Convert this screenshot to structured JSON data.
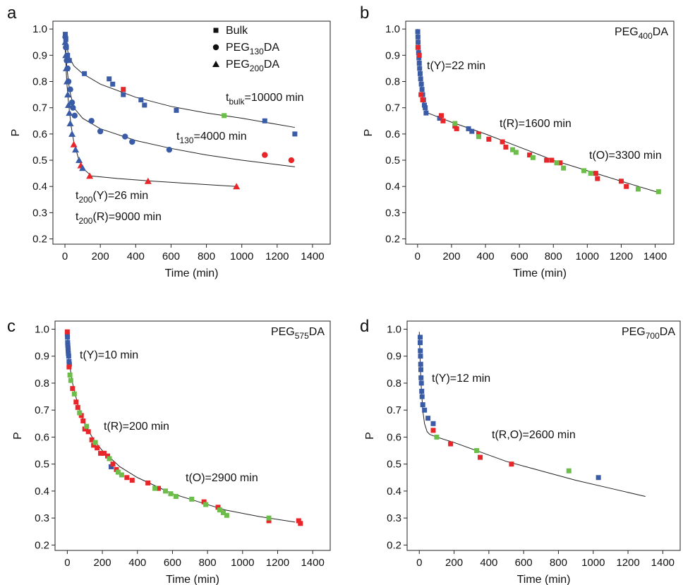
{
  "chart_data": [
    {
      "type": "scatter",
      "panel": "a",
      "xlabel": "Time (min)",
      "ylabel": "P",
      "xlim": [
        -68,
        1500
      ],
      "ylim": [
        0.18,
        1.03
      ],
      "xticks": [
        0,
        200,
        400,
        600,
        800,
        1000,
        1200,
        1400
      ],
      "yticks": [
        0.2,
        0.3,
        0.4,
        0.5,
        0.6,
        0.7,
        0.8,
        0.9,
        {
          "value": 1,
          "label": "1.0"
        }
      ],
      "legend": "top-right",
      "series": [
        {
          "name": [
            {
              "text": "Bulk"
            }
          ],
          "marker": "square",
          "x": [
            2,
            5,
            8,
            15,
            25,
            110,
            250,
            270,
            330,
            330,
            430,
            450,
            630,
            900,
            1130,
            1300
          ],
          "y": [
            0.98,
            0.96,
            0.93,
            0.9,
            0.88,
            0.83,
            0.81,
            0.79,
            0.77,
            0.75,
            0.73,
            0.71,
            0.69,
            0.67,
            0.65,
            0.6
          ],
          "colors": [
            "#3a5ba6",
            "#3a5ba6",
            "#3a5ba6",
            "#3a5ba6",
            "#3a5ba6",
            "#3a5ba6",
            "#3a5ba6",
            "#3a5ba6",
            "#e8262a",
            "#3a5ba6",
            "#3a5ba6",
            "#3a5ba6",
            "#3a5ba6",
            "#6dbd4b",
            "#3a5ba6",
            "#3a5ba6"
          ]
        },
        {
          "name": [
            {
              "text": "PEG"
            },
            {
              "text": "130",
              "sub": true
            },
            {
              "text": "DA"
            }
          ],
          "marker": "circle",
          "x": [
            2,
            5,
            10,
            15,
            20,
            30,
            40,
            45,
            55,
            150,
            200,
            340,
            380,
            590,
            1130,
            1280
          ],
          "y": [
            0.97,
            0.93,
            0.88,
            0.85,
            0.8,
            0.77,
            0.72,
            0.7,
            0.67,
            0.65,
            0.61,
            0.59,
            0.57,
            0.54,
            0.52,
            0.5
          ],
          "colors": [
            "#3a5ba6",
            "#3a5ba6",
            "#3a5ba6",
            "#3a5ba6",
            "#3a5ba6",
            "#3a5ba6",
            "#3a5ba6",
            "#3a5ba6",
            "#3a5ba6",
            "#3a5ba6",
            "#3a5ba6",
            "#3a5ba6",
            "#3a5ba6",
            "#3a5ba6",
            "#e8262a",
            "#e8262a"
          ]
        },
        {
          "name": [
            {
              "text": "PEG"
            },
            {
              "text": "200",
              "sub": true
            },
            {
              "text": "DA"
            }
          ],
          "marker": "triangle",
          "x": [
            2,
            5,
            8,
            12,
            16,
            20,
            25,
            30,
            40,
            50,
            60,
            80,
            90,
            100,
            140,
            470,
            970
          ],
          "y": [
            0.95,
            0.9,
            0.85,
            0.8,
            0.75,
            0.71,
            0.68,
            0.64,
            0.6,
            0.56,
            0.54,
            0.5,
            0.48,
            0.47,
            0.44,
            0.42,
            0.4
          ],
          "colors": [
            "#3a5ba6",
            "#3a5ba6",
            "#3a5ba6",
            "#3a5ba6",
            "#3a5ba6",
            "#3a5ba6",
            "#3a5ba6",
            "#3a5ba6",
            "#3a5ba6",
            "#e8262a",
            "#3a5ba6",
            "#3a5ba6",
            "#e8262a",
            "#3a5ba6",
            "#e8262a",
            "#e8262a",
            "#e8262a"
          ]
        }
      ],
      "fits": [
        {
          "x": [
            0,
            20,
            50,
            100,
            200,
            400,
            600,
            800,
            1000,
            1300
          ],
          "y": [
            0.98,
            0.9,
            0.86,
            0.83,
            0.79,
            0.74,
            0.705,
            0.68,
            0.66,
            0.625
          ]
        },
        {
          "x": [
            0,
            10,
            25,
            50,
            100,
            200,
            400,
            600,
            800,
            1000,
            1300
          ],
          "y": [
            0.97,
            0.86,
            0.77,
            0.7,
            0.66,
            0.62,
            0.575,
            0.545,
            0.52,
            0.5,
            0.475
          ]
        },
        {
          "x": [
            0,
            10,
            20,
            35,
            50,
            75,
            100,
            150,
            300,
            500,
            970
          ],
          "y": [
            0.95,
            0.8,
            0.72,
            0.63,
            0.57,
            0.51,
            0.47,
            0.44,
            0.43,
            0.42,
            0.4
          ]
        }
      ],
      "annotations": [
        [
          {
            "text": "t"
          },
          {
            "text": "bulk",
            "sub": true
          },
          {
            "text": "=10000 min"
          }
        ],
        [
          {
            "text": "t"
          },
          {
            "text": "130",
            "sub": true
          },
          {
            "text": "=4000 min"
          }
        ],
        [
          {
            "text": "t"
          },
          {
            "text": "200",
            "sub": true
          },
          {
            "text": "(Y)=26 min"
          }
        ],
        [
          {
            "text": "t"
          },
          {
            "text": "200",
            "sub": true
          },
          {
            "text": "(R)=9000 min"
          }
        ]
      ]
    },
    {
      "type": "scatter",
      "panel": "b",
      "xlabel": "Time (min)",
      "ylabel": "P",
      "title": [
        {
          "text": "PEG"
        },
        {
          "text": "400",
          "sub": true
        },
        {
          "text": "DA"
        }
      ],
      "xlim": [
        -70,
        1510
      ],
      "ylim": [
        0.18,
        1.03
      ],
      "xticks": [
        0,
        200,
        400,
        600,
        800,
        1000,
        1200,
        1400
      ],
      "yticks": [
        0.2,
        0.3,
        0.4,
        0.5,
        0.6,
        0.7,
        0.8,
        0.9,
        {
          "value": 1,
          "label": "1.0"
        }
      ],
      "series": [
        {
          "marker": "square",
          "x": [
            1,
            2,
            3,
            4,
            6,
            8,
            10,
            12,
            15,
            18,
            22,
            26,
            30,
            35,
            40,
            45,
            50,
            130,
            300,
            320,
            2,
            10,
            20,
            30,
            140,
            150,
            220,
            230,
            360,
            420,
            500,
            520,
            660,
            760,
            790,
            840,
            1050,
            1060,
            1200,
            1230,
            220,
            360,
            560,
            580,
            680,
            820,
            860,
            980,
            1020,
            1300,
            1420
          ],
          "y": [
            0.99,
            0.97,
            0.95,
            0.93,
            0.91,
            0.89,
            0.87,
            0.85,
            0.83,
            0.81,
            0.79,
            0.77,
            0.75,
            0.73,
            0.71,
            0.7,
            0.68,
            0.66,
            0.62,
            0.61,
            0.93,
            0.9,
            0.75,
            0.73,
            0.67,
            0.65,
            0.63,
            0.62,
            0.6,
            0.58,
            0.57,
            0.55,
            0.52,
            0.5,
            0.5,
            0.49,
            0.45,
            0.43,
            0.42,
            0.4,
            0.64,
            0.59,
            0.54,
            0.53,
            0.51,
            0.49,
            0.47,
            0.46,
            0.45,
            0.39,
            0.38
          ],
          "colors": [
            "#3a5ba6",
            "#3a5ba6",
            "#3a5ba6",
            "#3a5ba6",
            "#3a5ba6",
            "#3a5ba6",
            "#3a5ba6",
            "#3a5ba6",
            "#3a5ba6",
            "#3a5ba6",
            "#3a5ba6",
            "#3a5ba6",
            "#3a5ba6",
            "#3a5ba6",
            "#3a5ba6",
            "#3a5ba6",
            "#3a5ba6",
            "#3a5ba6",
            "#3a5ba6",
            "#3a5ba6",
            "#e8262a",
            "#e8262a",
            "#e8262a",
            "#e8262a",
            "#e8262a",
            "#e8262a",
            "#e8262a",
            "#e8262a",
            "#e8262a",
            "#e8262a",
            "#e8262a",
            "#e8262a",
            "#e8262a",
            "#e8262a",
            "#e8262a",
            "#e8262a",
            "#e8262a",
            "#e8262a",
            "#e8262a",
            "#e8262a",
            "#6dbd4b",
            "#6dbd4b",
            "#6dbd4b",
            "#6dbd4b",
            "#6dbd4b",
            "#6dbd4b",
            "#6dbd4b",
            "#6dbd4b",
            "#6dbd4b",
            "#6dbd4b",
            "#6dbd4b"
          ]
        }
      ],
      "fits": [
        {
          "x": [
            0,
            10,
            20,
            30,
            40,
            60,
            100,
            200,
            400,
            600,
            800,
            1000,
            1200,
            1430
          ],
          "y": [
            1,
            0.88,
            0.8,
            0.74,
            0.7,
            0.68,
            0.67,
            0.645,
            0.6,
            0.55,
            0.5,
            0.46,
            0.42,
            0.375
          ]
        }
      ],
      "annotations": [
        [
          {
            "text": "t(Y)=22 min"
          }
        ],
        [
          {
            "text": "t(R)=1600 min"
          }
        ],
        [
          {
            "text": "t(O)=3300 min"
          }
        ]
      ]
    },
    {
      "type": "scatter",
      "panel": "c",
      "xlabel": "Time (min)",
      "ylabel": "P",
      "title": [
        {
          "text": "PEG"
        },
        {
          "text": "575",
          "sub": true
        },
        {
          "text": "DA"
        }
      ],
      "xlim": [
        -70,
        1500
      ],
      "ylim": [
        0.18,
        1.03
      ],
      "xticks": [
        0,
        200,
        400,
        600,
        800,
        1000,
        1200,
        1400
      ],
      "yticks": [
        0.2,
        0.3,
        0.4,
        0.5,
        0.6,
        0.7,
        0.8,
        0.9,
        {
          "value": 1,
          "label": "1.0"
        }
      ],
      "series": [
        {
          "marker": "square",
          "x": [
            0,
            1,
            2,
            3,
            4,
            5,
            6,
            8,
            10,
            12,
            250,
            0,
            10,
            30,
            50,
            60,
            80,
            90,
            100,
            120,
            140,
            150,
            170,
            190,
            210,
            230,
            260,
            280,
            340,
            370,
            460,
            520,
            780,
            860,
            1150,
            1320,
            1330,
            15,
            20,
            40,
            70,
            110,
            160,
            240,
            290,
            310,
            500,
            560,
            590,
            620,
            710,
            790,
            870,
            890,
            910,
            1150
          ],
          "y": [
            0.98,
            0.97,
            0.95,
            0.94,
            0.93,
            0.92,
            0.91,
            0.9,
            0.88,
            0.87,
            0.49,
            0.99,
            0.86,
            0.78,
            0.73,
            0.71,
            0.68,
            0.66,
            0.63,
            0.62,
            0.59,
            0.57,
            0.56,
            0.54,
            0.54,
            0.53,
            0.5,
            0.48,
            0.45,
            0.44,
            0.43,
            0.41,
            0.36,
            0.34,
            0.29,
            0.29,
            0.28,
            0.83,
            0.81,
            0.76,
            0.69,
            0.64,
            0.58,
            0.52,
            0.47,
            0.46,
            0.41,
            0.4,
            0.39,
            0.38,
            0.37,
            0.35,
            0.33,
            0.32,
            0.31,
            0.3
          ],
          "colors": [
            "#3a5ba6",
            "#3a5ba6",
            "#3a5ba6",
            "#3a5ba6",
            "#3a5ba6",
            "#3a5ba6",
            "#3a5ba6",
            "#3a5ba6",
            "#3a5ba6",
            "#3a5ba6",
            "#3a5ba6",
            "#e8262a",
            "#e8262a",
            "#e8262a",
            "#e8262a",
            "#e8262a",
            "#e8262a",
            "#e8262a",
            "#e8262a",
            "#e8262a",
            "#e8262a",
            "#e8262a",
            "#e8262a",
            "#e8262a",
            "#e8262a",
            "#e8262a",
            "#e8262a",
            "#e8262a",
            "#e8262a",
            "#e8262a",
            "#e8262a",
            "#e8262a",
            "#e8262a",
            "#e8262a",
            "#e8262a",
            "#e8262a",
            "#e8262a",
            "#6dbd4b",
            "#6dbd4b",
            "#6dbd4b",
            "#6dbd4b",
            "#6dbd4b",
            "#6dbd4b",
            "#6dbd4b",
            "#6dbd4b",
            "#6dbd4b",
            "#6dbd4b",
            "#6dbd4b",
            "#6dbd4b",
            "#6dbd4b",
            "#6dbd4b",
            "#6dbd4b",
            "#6dbd4b",
            "#6dbd4b",
            "#6dbd4b",
            "#6dbd4b"
          ]
        }
      ],
      "fits": [
        {
          "x": [
            0,
            10,
            30,
            60,
            100,
            150,
            200,
            300,
            400,
            500,
            600,
            750,
            900,
            1100,
            1300
          ],
          "y": [
            0.99,
            0.88,
            0.8,
            0.72,
            0.65,
            0.59,
            0.55,
            0.49,
            0.45,
            0.42,
            0.39,
            0.36,
            0.33,
            0.305,
            0.285
          ]
        }
      ],
      "annotations": [
        [
          {
            "text": "t(Y)=10 min"
          }
        ],
        [
          {
            "text": "t(R)=200 min"
          }
        ],
        [
          {
            "text": "t(O)=2900 min"
          }
        ]
      ]
    },
    {
      "type": "scatter",
      "panel": "d",
      "xlabel": "Time (min)",
      "ylabel": "P",
      "title": [
        {
          "text": "PEG"
        },
        {
          "text": "700",
          "sub": true
        },
        {
          "text": "DA"
        }
      ],
      "xlim": [
        -70,
        1500
      ],
      "ylim": [
        0.18,
        1.03
      ],
      "xticks": [
        0,
        200,
        400,
        600,
        800,
        1000,
        1200,
        1400
      ],
      "yticks": [
        0.2,
        0.3,
        0.4,
        0.5,
        0.6,
        0.7,
        0.8,
        0.9,
        {
          "value": 1,
          "label": "1.0"
        }
      ],
      "series": [
        {
          "marker": "square",
          "x": [
            5,
            5,
            6,
            7,
            8,
            9,
            10,
            12,
            14,
            16,
            20,
            30,
            50,
            80,
            1030,
            80,
            180,
            350,
            530,
            100,
            330,
            860
          ],
          "y": [
            0.97,
            0.95,
            0.92,
            0.9,
            0.87,
            0.85,
            0.82,
            0.8,
            0.77,
            0.75,
            0.72,
            0.7,
            0.67,
            0.65,
            0.45,
            0.625,
            0.575,
            0.525,
            0.5,
            0.6,
            0.55,
            0.475
          ],
          "colors": [
            "#3a5ba6",
            "#3a5ba6",
            "#3a5ba6",
            "#3a5ba6",
            "#3a5ba6",
            "#3a5ba6",
            "#3a5ba6",
            "#3a5ba6",
            "#3a5ba6",
            "#3a5ba6",
            "#3a5ba6",
            "#3a5ba6",
            "#3a5ba6",
            "#3a5ba6",
            "#3a5ba6",
            "#e8262a",
            "#e8262a",
            "#e8262a",
            "#e8262a",
            "#6dbd4b",
            "#6dbd4b",
            "#6dbd4b"
          ]
        }
      ],
      "fits": [
        {
          "x": [
            0,
            5,
            10,
            20,
            30,
            45,
            60,
            100,
            200,
            350,
            500,
            700,
            900,
            1100,
            1300
          ],
          "y": [
            0.99,
            0.88,
            0.8,
            0.7,
            0.65,
            0.62,
            0.61,
            0.6,
            0.58,
            0.545,
            0.51,
            0.475,
            0.44,
            0.41,
            0.38
          ]
        }
      ],
      "annotations": [
        [
          {
            "text": "t(Y)=12 min"
          }
        ],
        [
          {
            "text": "t(R,O)=2600 min"
          }
        ]
      ]
    }
  ]
}
